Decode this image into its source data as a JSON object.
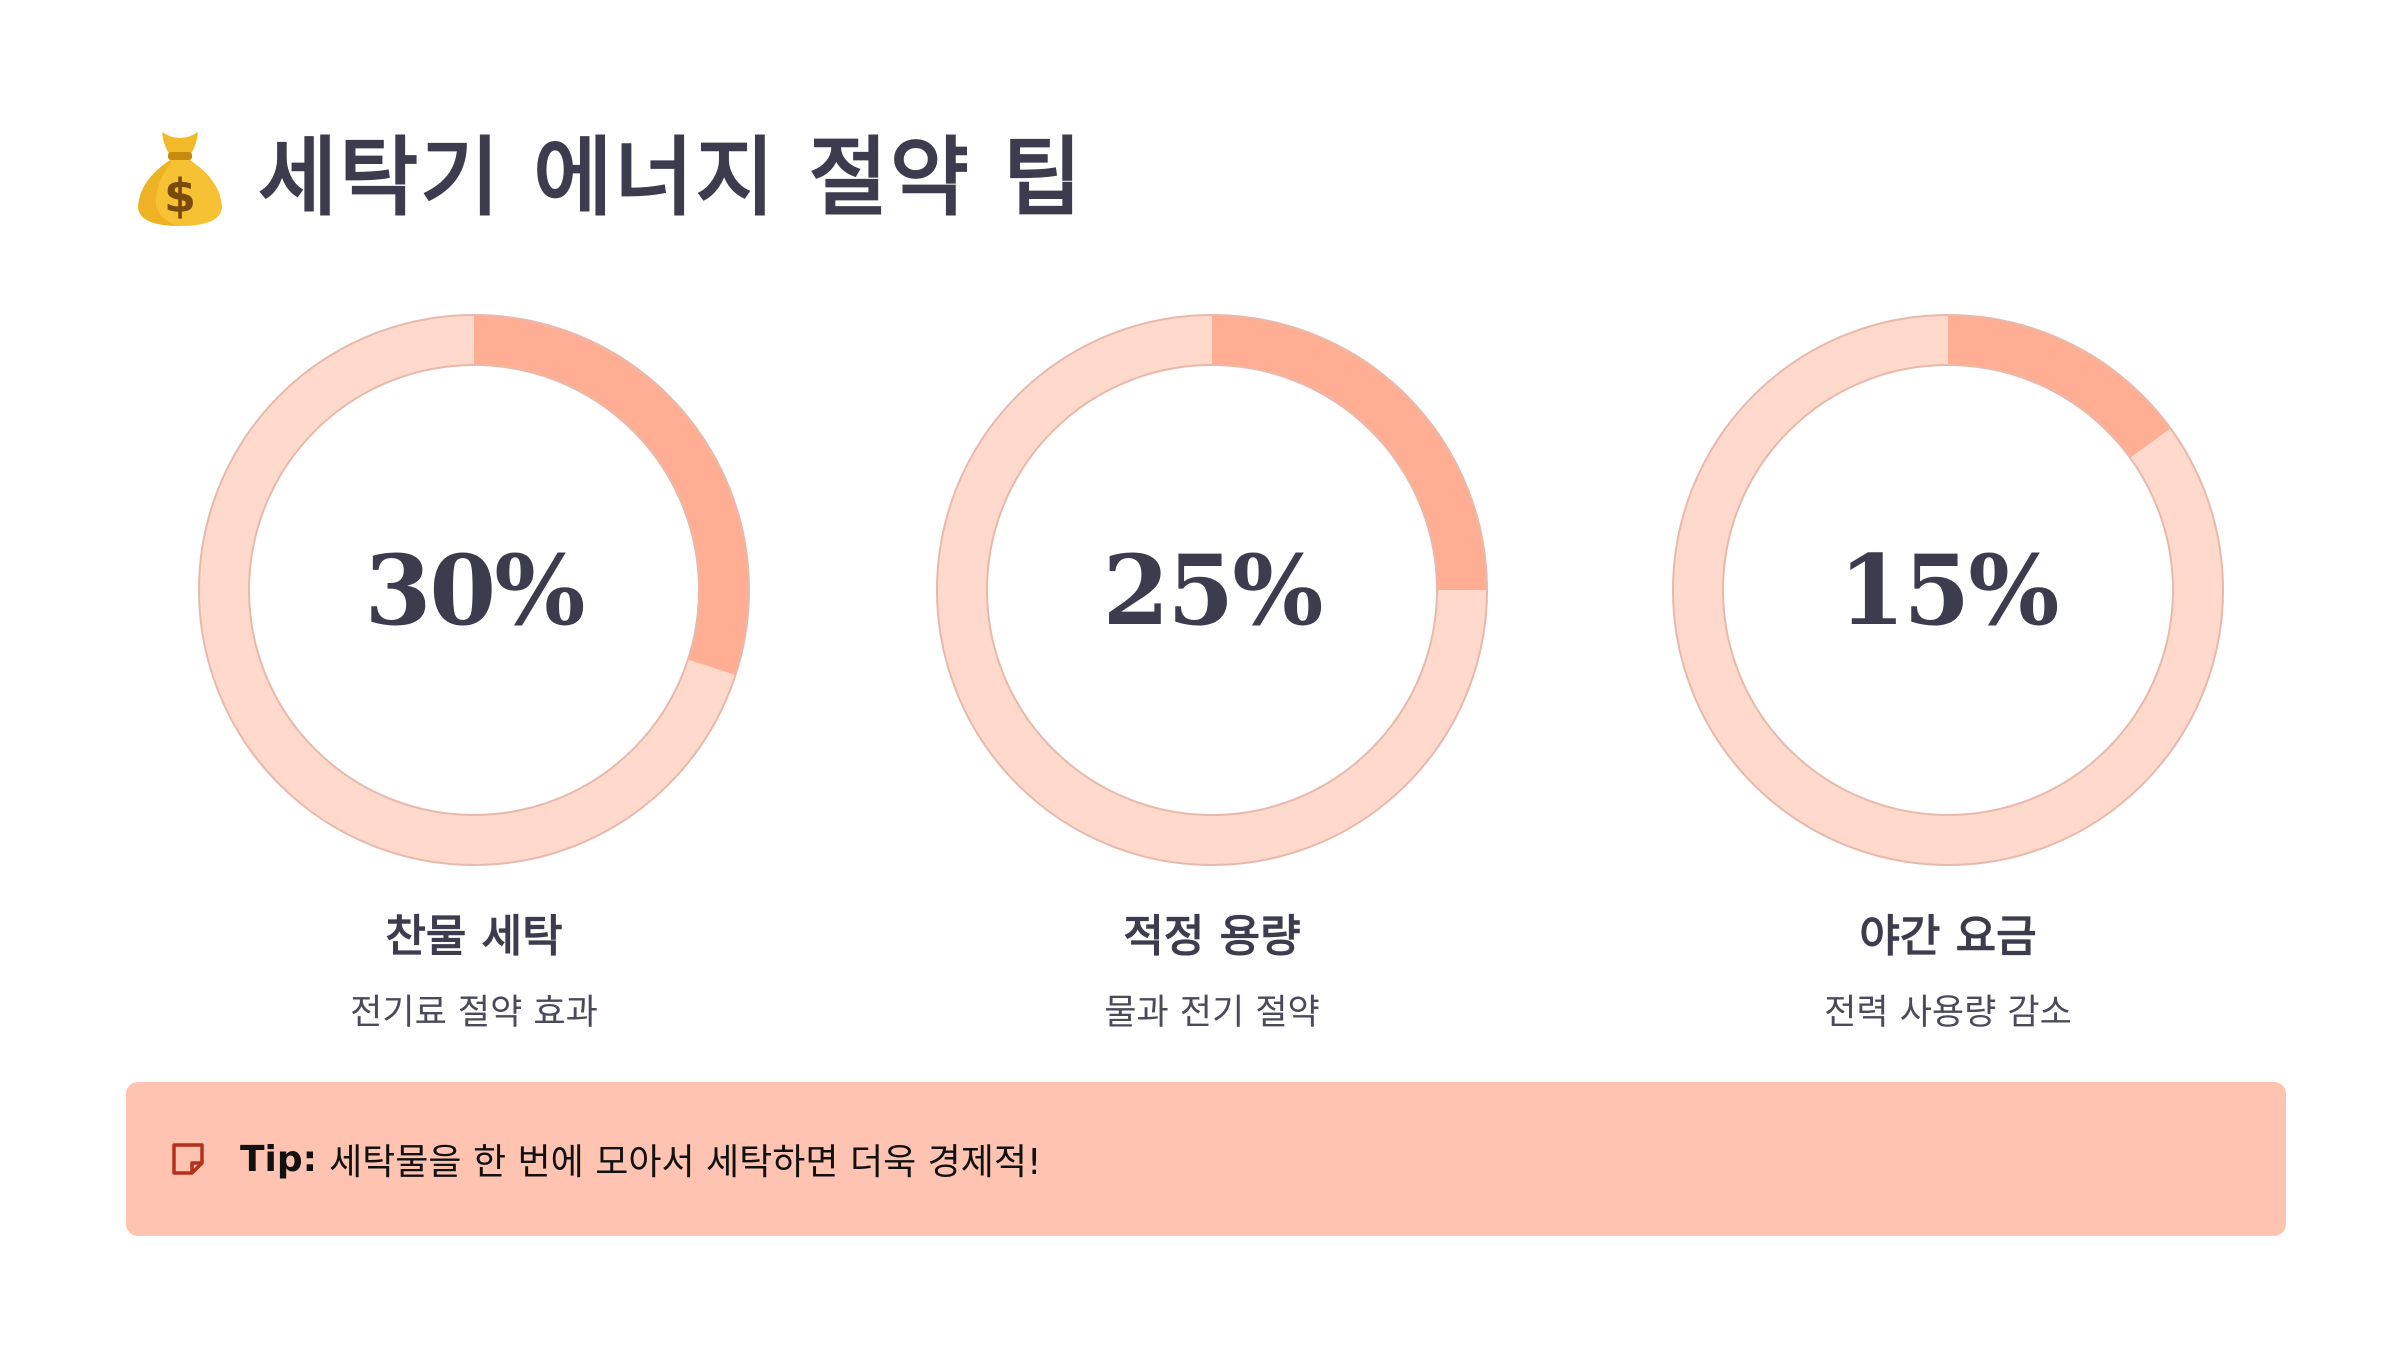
{
  "page": {
    "title": "세탁기 에너지 절약 팁",
    "title_icon": "money-bag-icon"
  },
  "chart_data": {
    "type": "pie",
    "style": "donut",
    "max": 100,
    "colors": {
      "filled": "#ffae94",
      "remaining": "#fed9cc",
      "ring_border": "#e8b9aa"
    },
    "items": [
      {
        "value": 30,
        "value_label": "30%",
        "label": "찬물 세탁",
        "description": "전기료 절약 효과"
      },
      {
        "value": 25,
        "value_label": "25%",
        "label": "적정 용량",
        "description": "물과 전기 절약"
      },
      {
        "value": 15,
        "value_label": "15%",
        "label": "야간 요금",
        "description": "전력 사용량 감소"
      }
    ]
  },
  "tip": {
    "icon": "memo-icon",
    "label": "Tip:",
    "text": "세탁물을 한 번에 모아서 세탁하면 더욱 경제적!"
  }
}
